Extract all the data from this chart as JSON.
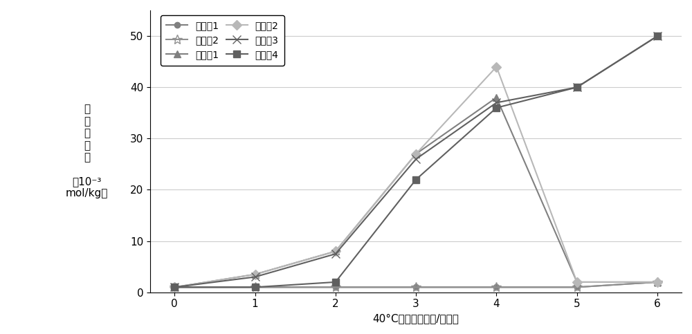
{
  "x": [
    0,
    1,
    2,
    3,
    4,
    5,
    6
  ],
  "series_order": [
    "实施例1",
    "实施例2",
    "对比例1",
    "对比例2",
    "对比例3",
    "对比例4"
  ],
  "series_data": {
    "实施例1": [
      1,
      1,
      1,
      1,
      1,
      1,
      2
    ],
    "实施例2": [
      1,
      1,
      1,
      1,
      1,
      1,
      2
    ],
    "对比例1": [
      1,
      3.5,
      8,
      27,
      38,
      2,
      2
    ],
    "对比例2": [
      1,
      3.5,
      8,
      27,
      44,
      2,
      2
    ],
    "对比例3": [
      1,
      3,
      7.5,
      26,
      37,
      40,
      50
    ],
    "对比例4": [
      1,
      1,
      2,
      22,
      36,
      40,
      50
    ]
  },
  "colors": {
    "实施例1": "#808080",
    "实施例2": "#909090",
    "对比例1": "#808080",
    "对比例2": "#b8b8b8",
    "对比例3": "#606060",
    "对比例4": "#606060"
  },
  "markers": {
    "实施例1": "o",
    "实施例2": "*",
    "对比例1": "^",
    "对比例2": "D",
    "对比例3": "x",
    "对比例4": "s"
  },
  "marker_sizes": {
    "实施例1": 6,
    "实施例2": 10,
    "对比例1": 7,
    "对比例2": 7,
    "对比例3": 9,
    "对比例4": 7
  },
  "ylabel_lines": [
    "酸",
    "残",
    "留",
    "浓",
    "度",
    "",
    "（10⁻³",
    "mol/kg）"
  ],
  "xlabel": "40°C高温老化时间/（周）",
  "ylim": [
    0,
    55
  ],
  "yticks": [
    0,
    10,
    20,
    30,
    40,
    50
  ],
  "xticks": [
    0,
    1,
    2,
    3,
    4,
    5,
    6
  ],
  "bg_color": "#ffffff",
  "grid_color": "#cccccc",
  "linewidth": 1.5
}
